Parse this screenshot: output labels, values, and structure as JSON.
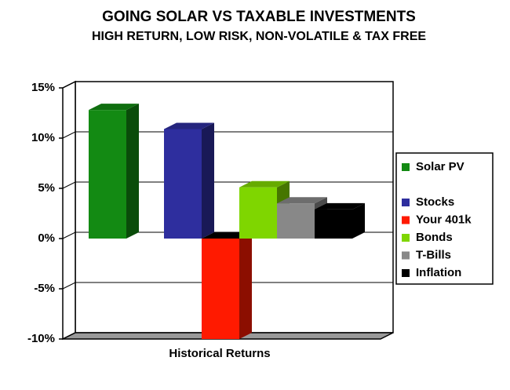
{
  "chart_data": {
    "type": "bar3d",
    "title": "GOING SOLAR VS TAXABLE INVESTMENTS",
    "subtitle": "HIGH RETURN, LOW RISK, NON-VOLATILE & TAX FREE",
    "x_label": "Historical Returns",
    "series": [
      {
        "name": "Solar PV",
        "color": "#138a13",
        "values": [
          12.8
        ]
      },
      {
        "name": "Stocks",
        "color": "#2e2e9e",
        "values": [
          10.9
        ]
      },
      {
        "name": "Your 401k",
        "color": "#ff1a00",
        "values": [
          -10
        ]
      },
      {
        "name": "Bonds",
        "color": "#7fd600",
        "values": [
          5.1
        ]
      },
      {
        "name": "T-Bills",
        "color": "#888888",
        "values": [
          3.5
        ]
      },
      {
        "name": "Inflation",
        "color": "#000000",
        "values": [
          2.9
        ]
      }
    ],
    "ylim": [
      -10,
      15
    ],
    "yticks": [
      {
        "value": -10,
        "label": "-10%"
      },
      {
        "value": -5,
        "label": "-5%"
      },
      {
        "value": 0,
        "label": "0%"
      },
      {
        "value": 5,
        "label": "5%"
      },
      {
        "value": 10,
        "label": "10%"
      },
      {
        "value": 15,
        "label": "15%"
      }
    ],
    "grid": true,
    "legend": "right"
  }
}
